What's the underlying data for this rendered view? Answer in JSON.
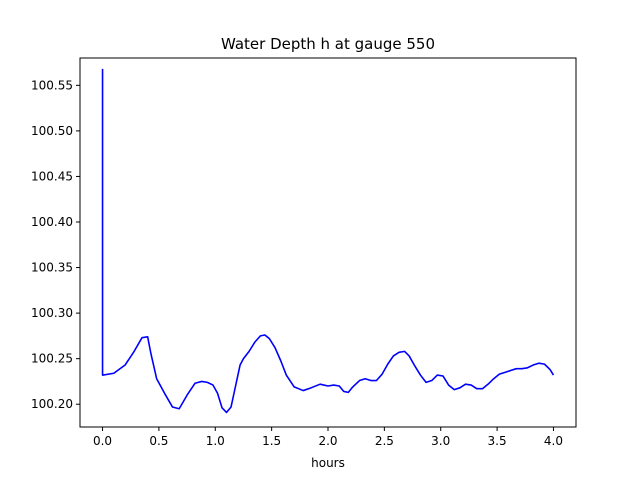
{
  "chart_data": {
    "type": "line",
    "title": "Water Depth h at gauge 550",
    "xlabel": "hours",
    "ylabel": "",
    "xlim": [
      -0.2,
      4.2
    ],
    "ylim": [
      100.175,
      100.58
    ],
    "grid": false,
    "legend": "none",
    "xticks": [
      0.0,
      0.5,
      1.0,
      1.5,
      2.0,
      2.5,
      3.0,
      3.5,
      4.0
    ],
    "xtick_labels": [
      "0.0",
      "0.5",
      "1.0",
      "1.5",
      "2.0",
      "2.5",
      "3.0",
      "3.5",
      "4.0"
    ],
    "yticks": [
      100.2,
      100.25,
      100.3,
      100.35,
      100.4,
      100.45,
      100.5,
      100.55
    ],
    "ytick_labels": [
      "100.20",
      "100.25",
      "100.30",
      "100.35",
      "100.40",
      "100.45",
      "100.50",
      "100.55"
    ],
    "series": [
      {
        "color": "#0000ff",
        "x": [
          0.0,
          0.0,
          0.005,
          0.1,
          0.2,
          0.28,
          0.35,
          0.4,
          0.43,
          0.48,
          0.55,
          0.62,
          0.68,
          0.75,
          0.82,
          0.88,
          0.93,
          0.98,
          1.02,
          1.06,
          1.1,
          1.14,
          1.18,
          1.22,
          1.25,
          1.3,
          1.35,
          1.4,
          1.44,
          1.48,
          1.53,
          1.58,
          1.63,
          1.7,
          1.78,
          1.85,
          1.93,
          2.0,
          2.05,
          2.1,
          2.14,
          2.18,
          2.22,
          2.28,
          2.33,
          2.38,
          2.43,
          2.48,
          2.53,
          2.58,
          2.63,
          2.68,
          2.72,
          2.77,
          2.82,
          2.87,
          2.92,
          2.97,
          3.02,
          3.07,
          3.12,
          3.17,
          3.22,
          3.27,
          3.32,
          3.37,
          3.42,
          3.47,
          3.52,
          3.57,
          3.62,
          3.67,
          3.72,
          3.77,
          3.82,
          3.87,
          3.92,
          3.97,
          4.0
        ],
        "y": [
          100.568,
          100.232,
          100.232,
          100.234,
          100.243,
          100.258,
          100.273,
          100.274,
          100.255,
          100.228,
          100.212,
          100.197,
          100.195,
          100.21,
          100.223,
          100.225,
          100.224,
          100.221,
          100.212,
          100.196,
          100.191,
          100.197,
          100.22,
          100.243,
          100.25,
          100.258,
          100.268,
          100.275,
          100.276,
          100.272,
          100.262,
          100.248,
          100.232,
          100.219,
          100.215,
          100.218,
          100.222,
          100.22,
          100.221,
          100.22,
          100.214,
          100.213,
          100.219,
          100.226,
          100.228,
          100.226,
          100.226,
          100.233,
          100.244,
          100.253,
          100.257,
          100.258,
          100.253,
          100.242,
          100.232,
          100.224,
          100.226,
          100.232,
          100.231,
          100.221,
          100.216,
          100.218,
          100.222,
          100.221,
          100.217,
          100.217,
          100.222,
          100.228,
          100.233,
          100.235,
          100.237,
          100.239,
          100.239,
          100.24,
          100.243,
          100.245,
          100.244,
          100.238,
          100.232
        ]
      }
    ]
  }
}
